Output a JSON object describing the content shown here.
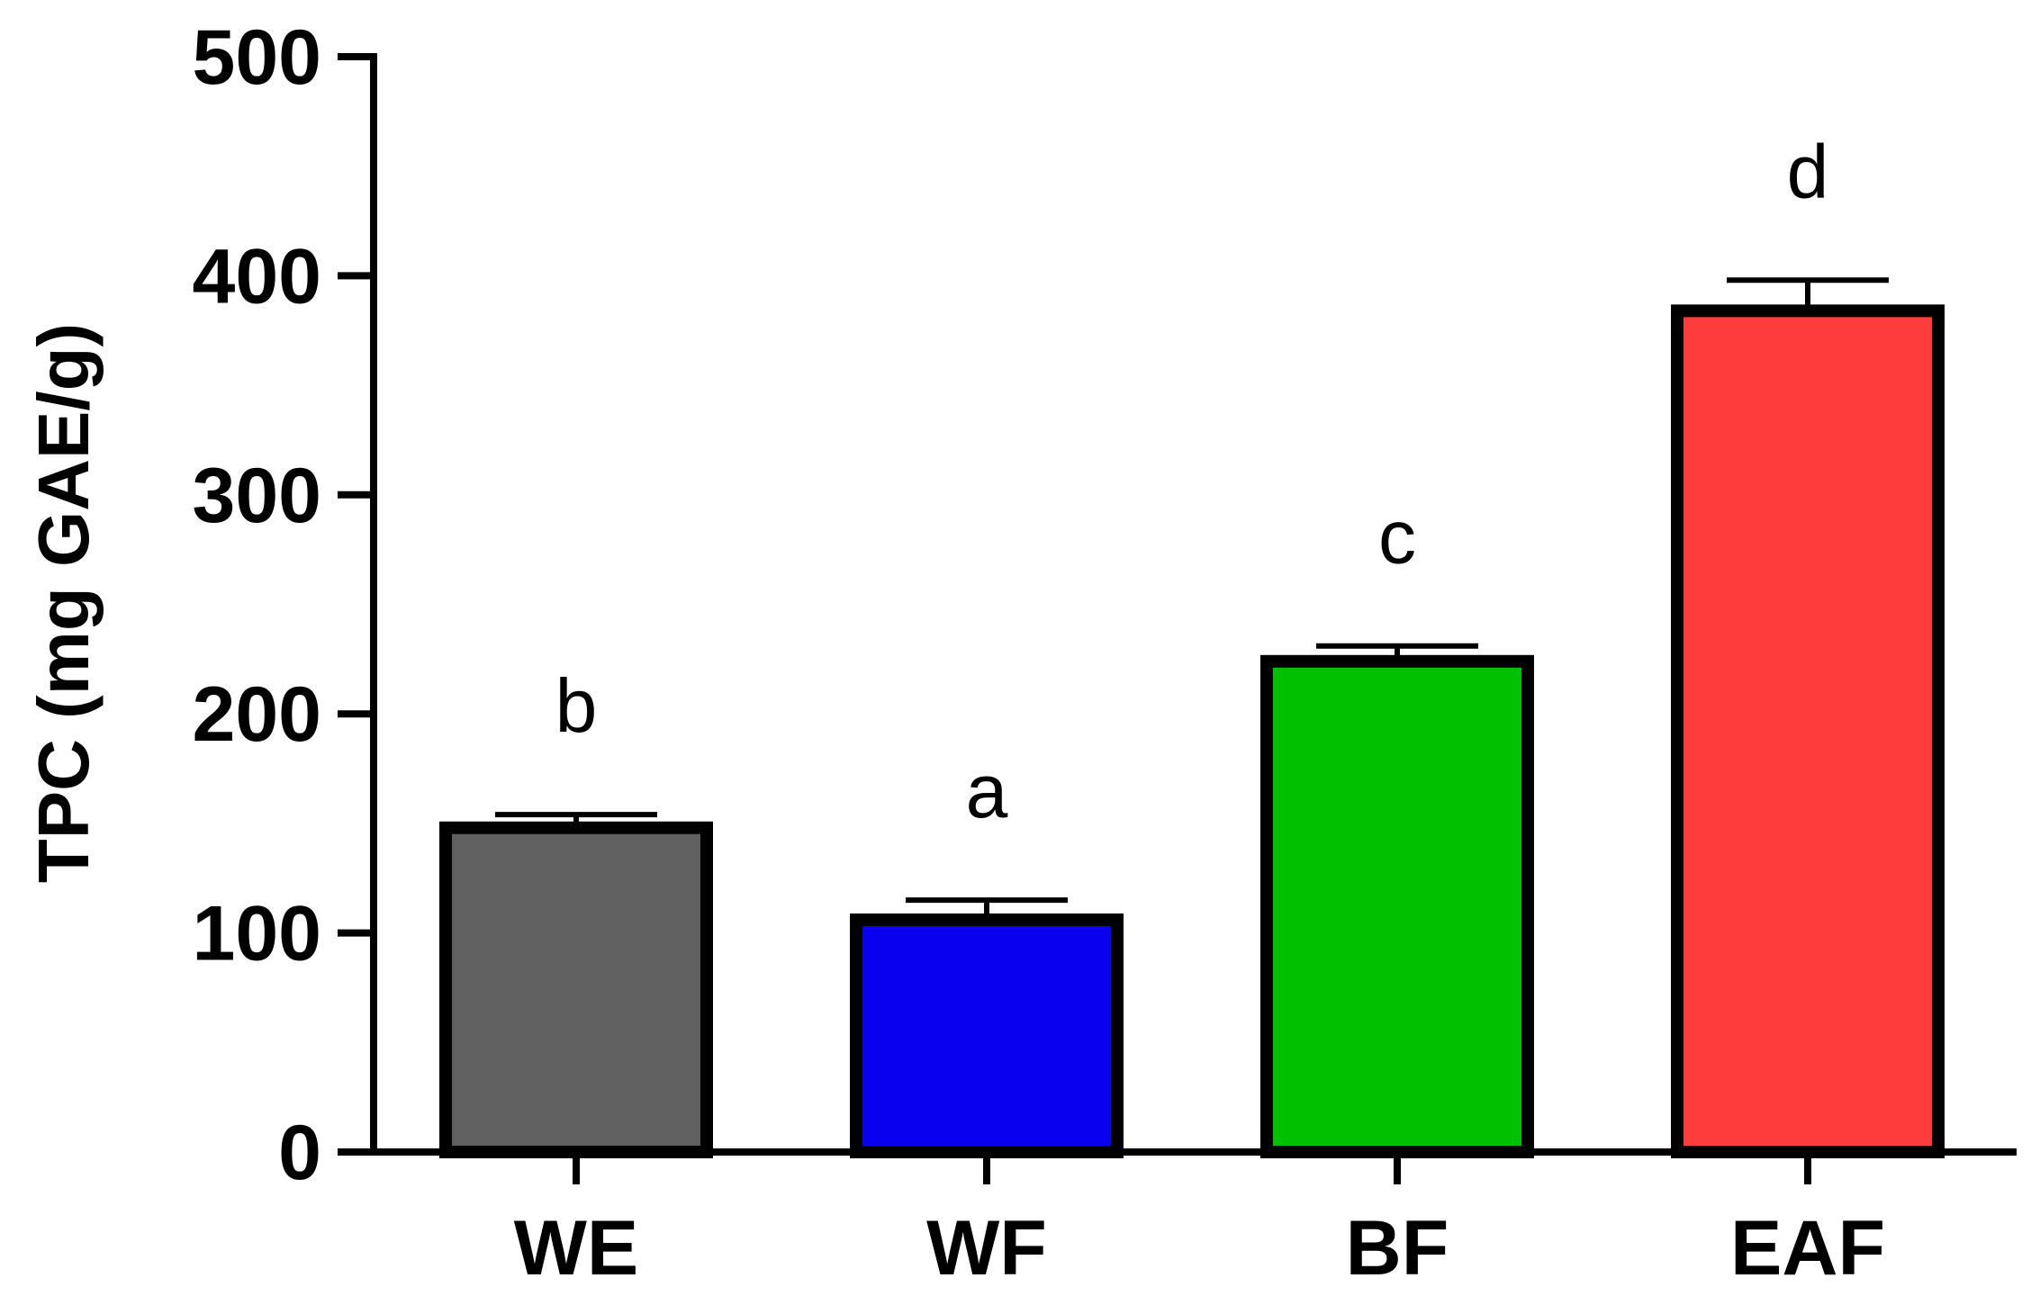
{
  "chart_data": {
    "type": "bar",
    "title": "",
    "xlabel": "",
    "ylabel": "TPC (mg GAE/g)",
    "ylim": [
      0,
      500
    ],
    "yticks": [
      0,
      100,
      200,
      300,
      400,
      500
    ],
    "categories": [
      "WE",
      "WF",
      "BF",
      "EAF"
    ],
    "values": [
      148,
      106,
      224,
      384
    ],
    "errors": [
      6,
      9,
      7,
      14
    ],
    "significance": [
      "b",
      "a",
      "c",
      "d"
    ],
    "colors": [
      "#606060",
      "#0a00f0",
      "#00c000",
      "#ff3c3c"
    ],
    "grid": false,
    "legend": "none"
  }
}
